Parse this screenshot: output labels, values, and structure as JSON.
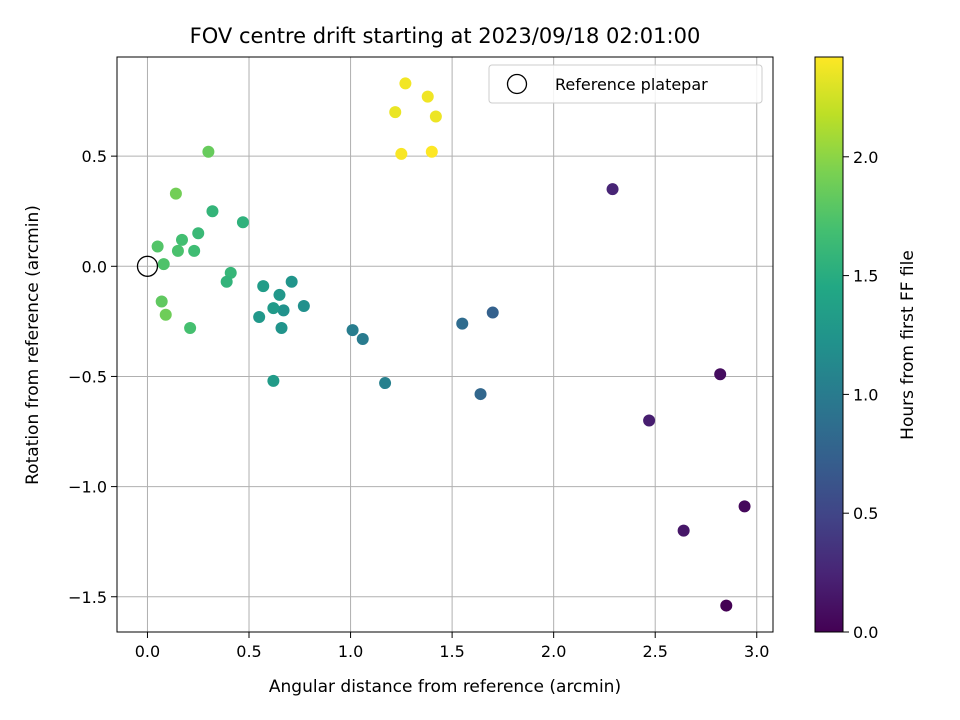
{
  "chart_data": {
    "type": "scatter",
    "title": "FOV centre drift starting at 2023/09/18 02:01:00",
    "xlabel": "Angular distance from reference (arcmin)",
    "ylabel": "Rotation from reference (arcmin)",
    "xlim": [
      -0.15,
      3.08
    ],
    "ylim": [
      -1.66,
      0.95
    ],
    "xticks": [
      0.0,
      0.5,
      1.0,
      1.5,
      2.0,
      2.5,
      3.0
    ],
    "xtick_labels": [
      "0.0",
      "0.5",
      "1.0",
      "1.5",
      "2.0",
      "2.5",
      "3.0"
    ],
    "yticks": [
      0.5,
      0.0,
      -0.5,
      -1.0,
      -1.5
    ],
    "ytick_labels": [
      "0.5",
      "0.0",
      "−0.5",
      "−1.0",
      "−1.5"
    ],
    "grid": true,
    "legend": {
      "position": "top-right",
      "label": "Reference platepar"
    },
    "reference_point": {
      "x": 0.0,
      "y": 0.0
    },
    "colorbar": {
      "label": "Hours from first FF file",
      "colormap": "viridis",
      "range": [
        0.0,
        2.42
      ],
      "ticks": [
        0.0,
        0.5,
        1.0,
        1.5,
        2.0
      ],
      "tick_labels": [
        "0.0",
        "0.5",
        "1.0",
        "1.5",
        "2.0"
      ]
    },
    "points": [
      {
        "x": 2.85,
        "y": -1.54,
        "h": 0.0
      },
      {
        "x": 2.94,
        "y": -1.09,
        "h": 0.05
      },
      {
        "x": 2.82,
        "y": -0.49,
        "h": 0.08
      },
      {
        "x": 2.64,
        "y": -1.2,
        "h": 0.15
      },
      {
        "x": 2.47,
        "y": -0.7,
        "h": 0.2
      },
      {
        "x": 2.29,
        "y": 0.35,
        "h": 0.25
      },
      {
        "x": 1.7,
        "y": -0.21,
        "h": 0.75
      },
      {
        "x": 1.64,
        "y": -0.58,
        "h": 0.8
      },
      {
        "x": 1.55,
        "y": -0.26,
        "h": 0.85
      },
      {
        "x": 1.17,
        "y": -0.53,
        "h": 1.05
      },
      {
        "x": 1.06,
        "y": -0.33,
        "h": 1.0
      },
      {
        "x": 1.01,
        "y": -0.29,
        "h": 1.02
      },
      {
        "x": 0.77,
        "y": -0.18,
        "h": 1.2
      },
      {
        "x": 0.71,
        "y": -0.07,
        "h": 1.25
      },
      {
        "x": 0.67,
        "y": -0.2,
        "h": 1.22
      },
      {
        "x": 0.65,
        "y": -0.13,
        "h": 1.27
      },
      {
        "x": 0.66,
        "y": -0.28,
        "h": 1.24
      },
      {
        "x": 0.62,
        "y": -0.19,
        "h": 1.3
      },
      {
        "x": 0.62,
        "y": -0.52,
        "h": 1.32
      },
      {
        "x": 0.57,
        "y": -0.09,
        "h": 1.33
      },
      {
        "x": 0.55,
        "y": -0.23,
        "h": 1.28
      },
      {
        "x": 0.47,
        "y": 0.2,
        "h": 1.55
      },
      {
        "x": 0.41,
        "y": -0.03,
        "h": 1.6
      },
      {
        "x": 0.39,
        "y": -0.07,
        "h": 1.57
      },
      {
        "x": 0.32,
        "y": 0.25,
        "h": 1.58
      },
      {
        "x": 0.3,
        "y": 0.52,
        "h": 1.85
      },
      {
        "x": 0.25,
        "y": 0.15,
        "h": 1.62
      },
      {
        "x": 0.23,
        "y": 0.07,
        "h": 1.66
      },
      {
        "x": 0.21,
        "y": -0.28,
        "h": 1.7
      },
      {
        "x": 0.17,
        "y": 0.12,
        "h": 1.68
      },
      {
        "x": 0.15,
        "y": 0.07,
        "h": 1.72
      },
      {
        "x": 0.14,
        "y": 0.33,
        "h": 1.9
      },
      {
        "x": 0.09,
        "y": -0.22,
        "h": 1.88
      },
      {
        "x": 0.08,
        "y": 0.01,
        "h": 1.74
      },
      {
        "x": 0.07,
        "y": -0.16,
        "h": 1.82
      },
      {
        "x": 0.05,
        "y": 0.09,
        "h": 1.76
      },
      {
        "x": 1.22,
        "y": 0.7,
        "h": 2.35
      },
      {
        "x": 1.27,
        "y": 0.83,
        "h": 2.38
      },
      {
        "x": 1.38,
        "y": 0.77,
        "h": 2.37
      },
      {
        "x": 1.42,
        "y": 0.68,
        "h": 2.36
      },
      {
        "x": 1.25,
        "y": 0.51,
        "h": 2.4
      },
      {
        "x": 1.4,
        "y": 0.52,
        "h": 2.42
      }
    ]
  }
}
